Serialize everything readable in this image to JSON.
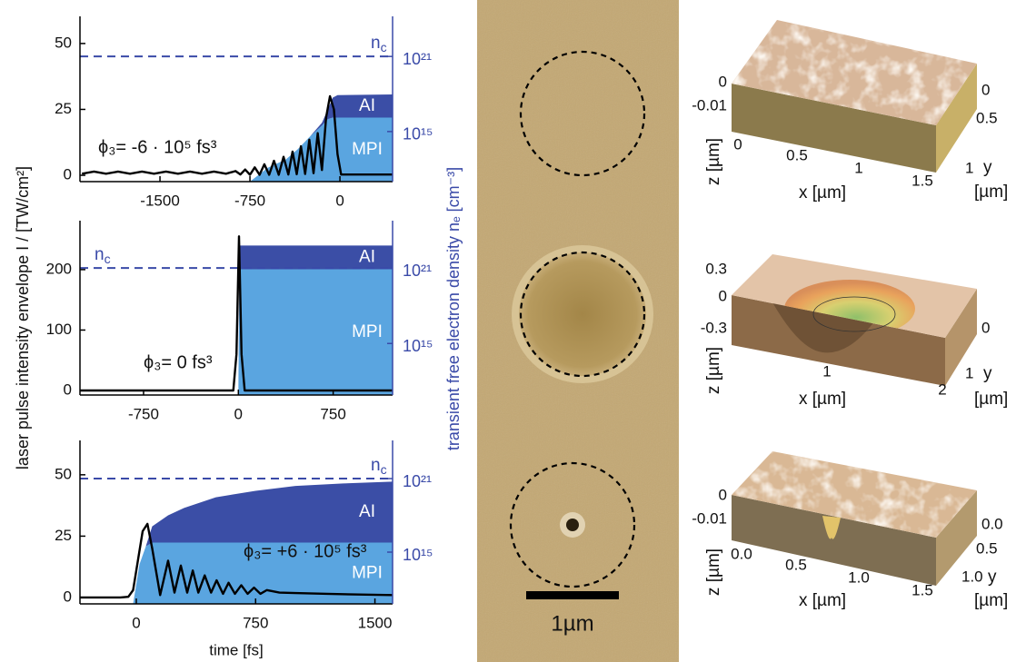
{
  "chart_data": [
    {
      "type": "line",
      "xlim": [
        -2167,
        439
      ],
      "xticks": [
        -1500,
        -750,
        0
      ],
      "ylim": [
        -2.4,
        60.3
      ],
      "yticks": [
        0,
        25,
        50
      ],
      "y2lim": [
        100000000000.0,
        1.6e+24
      ],
      "y2scale": "log",
      "y2ticks": [
        {
          "value": 1000000000000000.0,
          "label": "10¹⁵"
        },
        {
          "value": 1e+21,
          "label": "10²¹"
        }
      ],
      "annotation": "ϕ₃= -6 · 10⁵ fs³",
      "reference_line": {
        "value": 1e+21,
        "label": "n",
        "label_sub": "c"
      },
      "series": [
        {
          "color": "#000000",
          "x": [
            -2150,
            -2050,
            -1950,
            -1850,
            -1750,
            -1650,
            -1550,
            -1450,
            -1350,
            -1250,
            -1150,
            -1050,
            -950,
            -870,
            -830,
            -790,
            -750,
            -710,
            -670,
            -630,
            -590,
            -550,
            -510,
            -470,
            -430,
            -395,
            -360,
            -325,
            -290,
            -255,
            -220,
            -185,
            -150,
            -115,
            -83,
            -50,
            -20,
            10,
            100,
            439
          ],
          "values": [
            0.6,
            1.4,
            0.6,
            1.4,
            0.6,
            1.4,
            0.6,
            1.4,
            0.6,
            1.4,
            0.6,
            1.4,
            0.6,
            1.6,
            0.3,
            2.2,
            0.2,
            3,
            0.2,
            4.2,
            0.2,
            5.5,
            0.2,
            7,
            0.3,
            9,
            0.4,
            11,
            0.5,
            13.5,
            0.8,
            16,
            2,
            22,
            30,
            25,
            8,
            0.3,
            0.3,
            0.3
          ]
        },
        {
          "name": "MPI",
          "color": "#5aa5e0",
          "axis": "y2",
          "x": [
            -750,
            -600,
            -450,
            -350,
            -250,
            -150,
            -100,
            -60,
            -20,
            439
          ],
          "values": [
            100000000000.0,
            1300000000000.0,
            6000000000000.0,
            40000000000000.0,
            400000000000000.0,
            3000000000000000.0,
            1e+16,
            1.3e+16,
            1.3e+16,
            1.3e+16
          ]
        },
        {
          "name": "AI",
          "color": "#3b4ea6",
          "axis": "y2",
          "x": [
            -750,
            -600,
            -450,
            -350,
            -250,
            -150,
            -100,
            -60,
            -20,
            439
          ],
          "values": [
            0,
            0,
            0,
            0,
            0,
            2000000000000000.0,
            5e+16,
            5e+17,
            8e+17,
            9e+17
          ]
        }
      ]
    },
    {
      "type": "line",
      "xlim": [
        -1253,
        1220
      ],
      "xticks": [
        -750,
        0,
        750
      ],
      "ylim": [
        -7.5,
        281
      ],
      "yticks": [
        0,
        100,
        200
      ],
      "y2lim": [
        80000000000.0,
        5.8e+24
      ],
      "y2scale": "log",
      "y2ticks": [
        {
          "value": 1000000000000000.0,
          "label": "10¹⁵"
        },
        {
          "value": 1e+21,
          "label": "10²¹"
        }
      ],
      "annotation": "ϕ₃= 0 fs³",
      "ylabel": "laser pulse intensity envelope I / [TW/cm²]",
      "y2label": "transient free electron density nₑ [cm⁻³]",
      "reference_line": {
        "value": 1e+21,
        "label": "n",
        "label_sub": "c"
      },
      "series": [
        {
          "color": "#000000",
          "x": [
            -1253,
            -40,
            -15,
            5,
            25,
            50,
            1220
          ],
          "values": [
            0,
            0,
            60,
            255,
            60,
            0,
            0
          ]
        },
        {
          "name": "MPI",
          "color": "#5aa5e0",
          "axis": "y2",
          "x": [
            0,
            8,
            1220
          ],
          "values": [
            80000000000.0,
            8e+20,
            8e+20
          ]
        },
        {
          "name": "AI",
          "color": "#3b4ea6",
          "axis": "y2",
          "x": [
            0,
            8,
            1220
          ],
          "values": [
            0,
            6e+22,
            6e+22
          ]
        }
      ]
    },
    {
      "type": "line",
      "xlim": [
        -354,
        1611
      ],
      "xticks": [
        0,
        750,
        1500
      ],
      "ylim": [
        -2.6,
        64
      ],
      "yticks": [
        0,
        25,
        50
      ],
      "y2lim": [
        60000000000.0,
        1.3e+24
      ],
      "y2scale": "log",
      "y2ticks": [
        {
          "value": 1000000000000000.0,
          "label": "10¹⁵"
        },
        {
          "value": 1e+21,
          "label": "10²¹"
        }
      ],
      "annotation": "ϕ₃= +6 · 10⁵ fs³",
      "xlabel": "time [fs]",
      "reference_line": {
        "value": 1e+21,
        "label": "n",
        "label_sub": "c"
      },
      "series": [
        {
          "color": "#000000",
          "x": [
            -354,
            -100,
            -50,
            -20,
            10,
            40,
            70,
            100,
            150,
            200,
            240,
            280,
            320,
            355,
            390,
            430,
            470,
            505,
            545,
            580,
            620,
            660,
            700,
            740,
            780,
            820,
            900,
            1000,
            1200,
            1400,
            1611
          ],
          "values": [
            0,
            0,
            0.3,
            3,
            15,
            27,
            30,
            20,
            1,
            15,
            2,
            13,
            2,
            11,
            2,
            9,
            2,
            7,
            1.5,
            6,
            1.5,
            5,
            1.5,
            4,
            1.5,
            3,
            2,
            1.8,
            1.5,
            1.2,
            1
          ]
        },
        {
          "name": "MPI",
          "color": "#5aa5e0",
          "axis": "y2",
          "x": [
            -20,
            20,
            60,
            100,
            200,
            300,
            500,
            750,
            1000,
            1300,
            1611
          ],
          "values": [
            60000000000.0,
            100000000000000.0,
            3000000000000000.0,
            6000000000000000.0,
            6000000000000000.0,
            6000000000000000.0,
            6000000000000000.0,
            6000000000000000.0,
            6000000000000000.0,
            6000000000000000.0,
            6000000000000000.0
          ]
        },
        {
          "name": "AI",
          "color": "#3b4ea6",
          "axis": "y2",
          "x": [
            -20,
            20,
            60,
            100,
            200,
            300,
            500,
            750,
            1000,
            1300,
            1611
          ],
          "values": [
            0,
            0,
            0,
            1.2e+17,
            1e+18,
            4e+18,
            3e+19,
            1e+20,
            2.5e+20,
            4e+20,
            5.6e+20
          ]
        }
      ]
    }
  ],
  "micrograph": {
    "scale_bar": "1µm"
  },
  "surfaces": [
    {
      "z_label": "z [µm]",
      "z_ticks": [
        "0",
        "-0.01"
      ],
      "x_label": "x [µm]",
      "x_ticks": [
        "0",
        "0.5",
        "1",
        "1.5"
      ],
      "y_label": "y",
      "y_unit": "[µm]",
      "y_ticks": [
        "0",
        "0.5",
        "1"
      ]
    },
    {
      "z_label": "z [µm]",
      "z_ticks": [
        "0.3",
        "0",
        "-0.3"
      ],
      "x_label": "x [µm]",
      "x_ticks": [
        "1",
        "2"
      ],
      "y_label": "y",
      "y_unit": "[µm]",
      "y_ticks": [
        "0",
        "1"
      ]
    },
    {
      "z_label": "z [µm]",
      "z_ticks": [
        "0",
        "-0.01"
      ],
      "x_label": "x [µm]",
      "x_ticks": [
        "0.0",
        "0.5",
        "1.0",
        "1.5"
      ],
      "y_label": "y",
      "y_unit": "[µm]",
      "y_ticks": [
        "0.0",
        "0.5",
        "1.0"
      ]
    }
  ]
}
